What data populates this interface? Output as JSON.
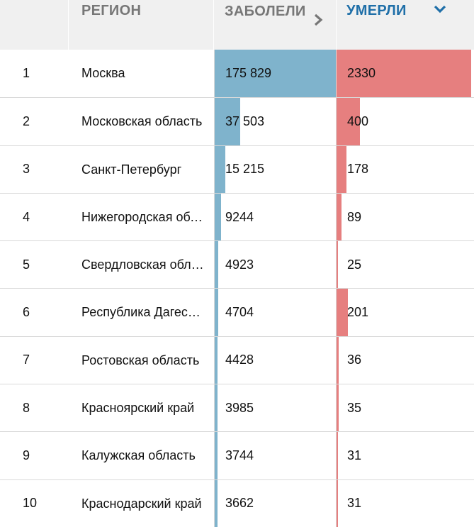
{
  "header": {
    "num": "",
    "region": "РЕГИОН",
    "cases": "ЗАБОЛЕЛИ",
    "deaths": "УМЕРЛИ"
  },
  "rows": [
    {
      "rank": "1",
      "region": "Москва",
      "cases": "175 829",
      "deaths": "2330",
      "cases_frac": 1.0,
      "deaths_frac": 1.0
    },
    {
      "rank": "2",
      "region": "Московская область",
      "cases": "37 503",
      "deaths": "400",
      "cases_frac": 0.213,
      "deaths_frac": 0.172
    },
    {
      "rank": "3",
      "region": "Санкт-Петербург",
      "cases": "15 215",
      "deaths": "178",
      "cases_frac": 0.087,
      "deaths_frac": 0.076
    },
    {
      "rank": "4",
      "region": "Нижегородская область",
      "cases": "9244",
      "deaths": "89",
      "cases_frac": 0.053,
      "deaths_frac": 0.038
    },
    {
      "rank": "5",
      "region": "Свердловская область",
      "cases": "4923",
      "deaths": "25",
      "cases_frac": 0.028,
      "deaths_frac": 0.011
    },
    {
      "rank": "6",
      "region": "Республика Дагестан",
      "cases": "4704",
      "deaths": "201",
      "cases_frac": 0.027,
      "deaths_frac": 0.086
    },
    {
      "rank": "7",
      "region": "Ростовская область",
      "cases": "4428",
      "deaths": "36",
      "cases_frac": 0.025,
      "deaths_frac": 0.015
    },
    {
      "rank": "8",
      "region": "Красноярский край",
      "cases": "3985",
      "deaths": "35",
      "cases_frac": 0.023,
      "deaths_frac": 0.015
    },
    {
      "rank": "9",
      "region": "Калужская область",
      "cases": "3744",
      "deaths": "31",
      "cases_frac": 0.021,
      "deaths_frac": 0.013
    },
    {
      "rank": "10",
      "region": "Краснодарский край",
      "cases": "3662",
      "deaths": "31",
      "cases_frac": 0.021,
      "deaths_frac": 0.013
    }
  ],
  "icons": {
    "cases_sort": "chevron-right-icon",
    "deaths_sort": "chevron-down-icon"
  },
  "colors": {
    "cases_bar": "#7fb3cc",
    "deaths_bar": "#e67f7f",
    "active_header": "#1f6fa8",
    "header_bg": "#f0f0f0"
  }
}
